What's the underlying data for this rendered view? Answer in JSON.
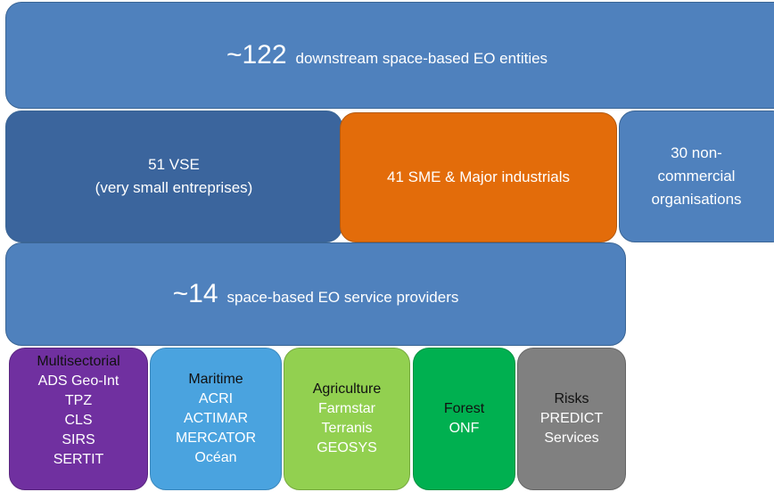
{
  "entities": {
    "number": "~122",
    "label": "downstream space-based EO entities"
  },
  "categories": [
    {
      "lines": [
        "51 VSE",
        "(very small entreprises)"
      ]
    },
    {
      "lines": [
        "41 SME & Major industrials"
      ]
    },
    {
      "lines": [
        "30 non-",
        "commercial",
        "organisations"
      ]
    }
  ],
  "providers": {
    "number": "~14",
    "label": "space-based EO service providers"
  },
  "sectors": [
    {
      "name": "Multisectorial",
      "members": [
        "ADS Geo-Int",
        "TPZ",
        "CLS",
        "SIRS",
        "SERTIT"
      ]
    },
    {
      "name": "Maritime",
      "members": [
        "ACRI",
        "ACTIMAR",
        "MERCATOR",
        "Océan"
      ]
    },
    {
      "name": "Agriculture",
      "members": [
        "Farmstar",
        "Terranis",
        "GEOSYS"
      ]
    },
    {
      "name": "Forest",
      "members": [
        "ONF"
      ]
    },
    {
      "name": "Risks",
      "members": [
        "PREDICT",
        "Services"
      ]
    }
  ]
}
